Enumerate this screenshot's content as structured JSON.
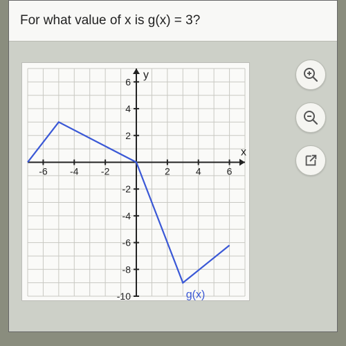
{
  "question": "For what value of x is g(x) = 3?",
  "graph": {
    "type": "line",
    "x_axis_label": "x",
    "y_axis_label": "y",
    "function_label": "g(x)",
    "xlim": [
      -7,
      7
    ],
    "ylim": [
      -10,
      7
    ],
    "xtick_values": [
      -6,
      -4,
      -2,
      2,
      4,
      6
    ],
    "ytick_values": [
      -10,
      -8,
      -6,
      -4,
      -2,
      2,
      4,
      6
    ],
    "xtick_step": 1,
    "ytick_step": 1,
    "points": [
      [
        -7,
        0
      ],
      [
        -5,
        3
      ],
      [
        0,
        0
      ],
      [
        3,
        -9
      ],
      [
        6,
        -6.2
      ]
    ],
    "line_color": "#3a58d6",
    "line_width": 2.2,
    "background_color": "#fafaf8",
    "grid_color": "#c8c8c2",
    "axis_color": "#222222",
    "label_fontsize": 14
  },
  "tools": {
    "zoom_in": "zoom-in-icon",
    "zoom_out": "zoom-out-icon",
    "open_new": "open-new-icon"
  },
  "colors": {
    "accent": "#3a58d6",
    "page_bg": "#cdd0c8",
    "panel_bg": "#fafaf8",
    "question_bg": "#f8f8f6",
    "axis": "#222222",
    "grid": "#c8c8c2"
  }
}
